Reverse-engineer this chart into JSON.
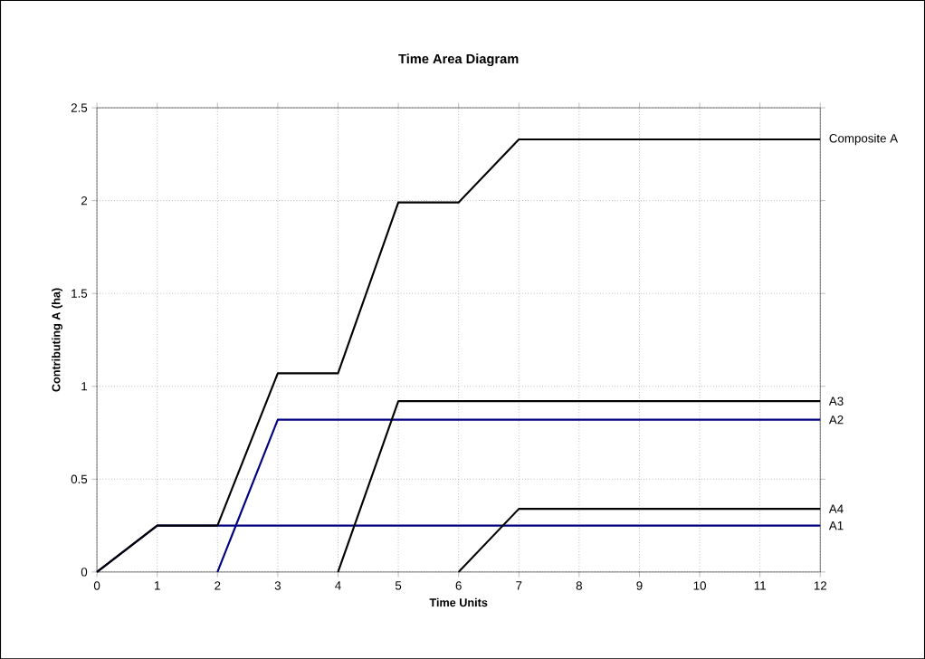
{
  "chart_data": {
    "type": "line",
    "title": "Time Area Diagram",
    "xlabel": "Time Units",
    "ylabel": "Contributing A (ha)",
    "xlim": [
      0,
      12
    ],
    "ylim": [
      0,
      2.5
    ],
    "xticks": [
      0,
      1,
      2,
      3,
      4,
      5,
      6,
      7,
      8,
      9,
      10,
      11,
      12
    ],
    "yticks": [
      0,
      0.5,
      1,
      1.5,
      2,
      2.5
    ],
    "grid": true,
    "marker": "none",
    "line_style": "solid",
    "series": [
      {
        "name": "A1",
        "color": "#000080",
        "x": [
          0,
          1,
          12
        ],
        "values": [
          0,
          0.25,
          0.25
        ]
      },
      {
        "name": "A2",
        "color": "#000080",
        "x": [
          2,
          3,
          12
        ],
        "values": [
          0,
          0.82,
          0.82
        ]
      },
      {
        "name": "A3",
        "color": "#000000",
        "x": [
          4,
          5,
          12
        ],
        "values": [
          0,
          0.92,
          0.92
        ]
      },
      {
        "name": "A4",
        "color": "#000000",
        "x": [
          6,
          7,
          12
        ],
        "values": [
          0,
          0.34,
          0.34
        ]
      },
      {
        "name": "Composite A",
        "color": "#000000",
        "x": [
          0,
          1,
          2,
          3,
          4,
          5,
          6,
          7,
          12
        ],
        "values": [
          0,
          0.25,
          0.25,
          1.07,
          1.07,
          1.99,
          1.99,
          2.33,
          2.33
        ]
      }
    ]
  }
}
